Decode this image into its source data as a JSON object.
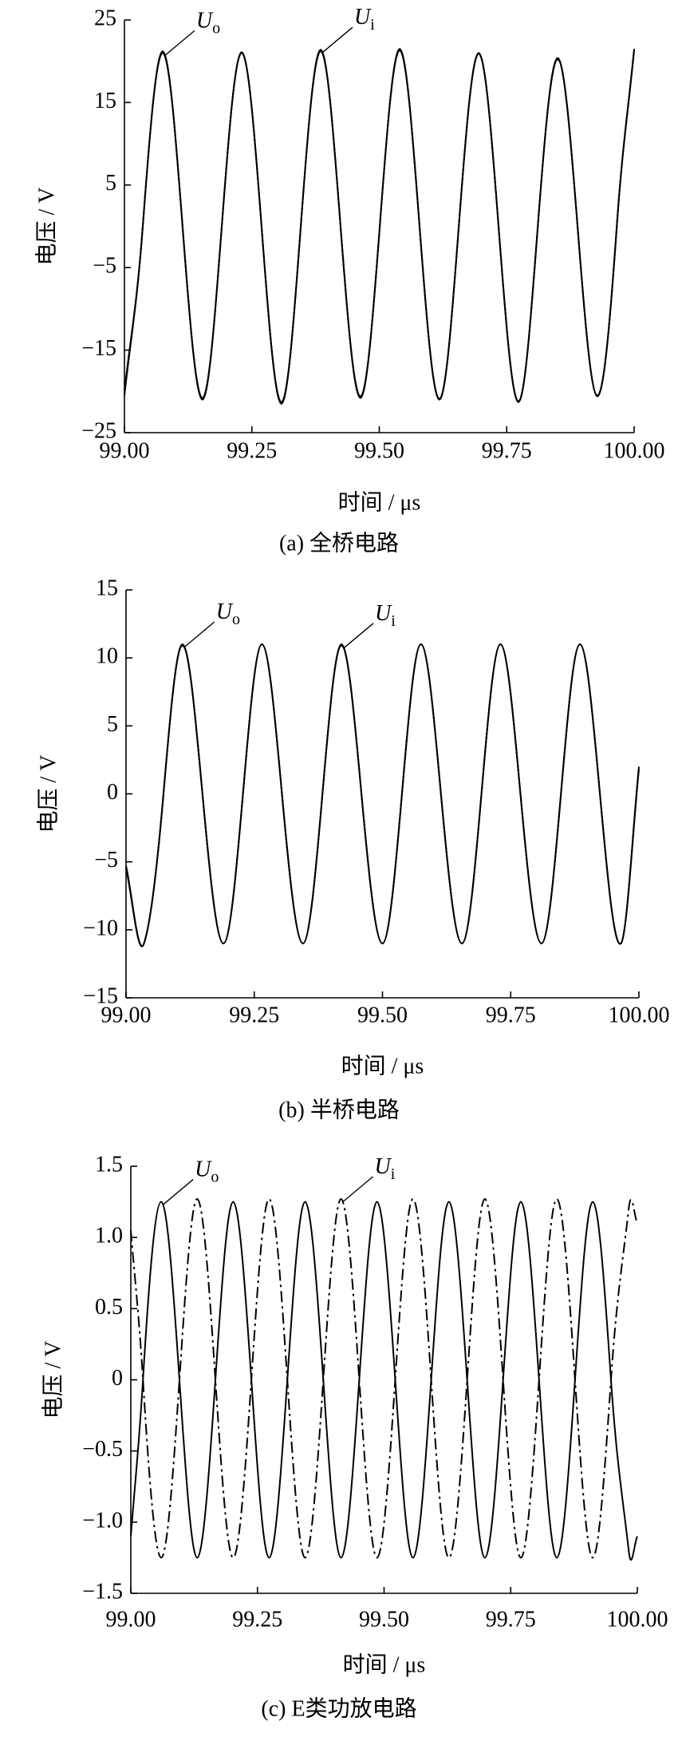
{
  "chart_data": [
    {
      "type": "line",
      "caption": "(a)  全桥电路",
      "xlabel": "时间 / μs",
      "ylabel": "电压 / V",
      "xlim": [
        99,
        100
      ],
      "ylim": [
        -25,
        25
      ],
      "xticks": [
        {
          "value": 99,
          "label": "99.00"
        },
        {
          "value": 99.25,
          "label": "99.25"
        },
        {
          "value": 99.5,
          "label": "99.50"
        },
        {
          "value": 99.75,
          "label": "99.75"
        },
        {
          "value": 100,
          "label": "100.00"
        }
      ],
      "yticks": [
        {
          "value": -25,
          "label": "−25"
        },
        {
          "value": -15,
          "label": "−15"
        },
        {
          "value": -5,
          "label": "−5"
        },
        5,
        15,
        25
      ],
      "series": [
        {
          "name": "Uo",
          "color": "#000000",
          "style": "solid",
          "x": [
            99,
            99.036,
            99.075,
            99.114,
            99.153,
            99.191,
            99.23,
            99.269,
            99.308,
            99.346,
            99.385,
            99.424,
            99.463,
            99.501,
            99.54,
            99.579,
            99.618,
            99.656,
            99.695,
            99.734,
            99.773,
            99.811,
            99.85,
            99.889,
            99.928,
            99.966,
            100
          ],
          "values": [
            -20.5,
            0,
            21,
            0,
            -21,
            0,
            21,
            0,
            -21.5,
            0,
            21.2,
            0,
            -20.8,
            0,
            21.3,
            0,
            -20.9,
            0,
            21,
            0,
            -21.2,
            0,
            20.4,
            0,
            -20.6,
            0,
            21.3
          ]
        },
        {
          "name": "Ui",
          "color": "#000000",
          "style": "solid",
          "x": [
            99,
            99.036,
            99.075,
            99.114,
            99.153,
            99.191,
            99.23,
            99.269,
            99.308,
            99.346,
            99.385,
            99.424,
            99.463,
            99.501,
            99.54,
            99.579,
            99.618,
            99.656,
            99.695,
            99.734,
            99.773,
            99.811,
            99.85,
            99.889,
            99.928,
            99.966,
            100
          ],
          "values": [
            -20,
            0,
            21.2,
            0,
            -20.8,
            0,
            21.1,
            0,
            -21.3,
            0,
            21.4,
            0,
            -20.6,
            0,
            21.5,
            0,
            -21,
            0,
            20.9,
            0,
            -21.3,
            0,
            20.2,
            0,
            -20.5,
            0,
            21.5
          ]
        }
      ]
    },
    {
      "type": "line",
      "caption": "(b)  半桥电路",
      "xlabel": "时间 / μs",
      "ylabel": "电压 / V",
      "xlim": [
        99,
        100
      ],
      "ylim": [
        -15,
        15
      ],
      "xticks": [
        {
          "value": 99,
          "label": "99.00"
        },
        {
          "value": 99.25,
          "label": "99.25"
        },
        {
          "value": 99.5,
          "label": "99.50"
        },
        {
          "value": 99.75,
          "label": "99.75"
        },
        {
          "value": 100,
          "label": "100.00"
        }
      ],
      "yticks": [
        {
          "value": -15,
          "label": "−15"
        },
        {
          "value": -10,
          "label": "−10"
        },
        {
          "value": -5,
          "label": "−5"
        },
        0,
        5,
        10,
        15
      ],
      "series": [
        {
          "name": "Uo",
          "color": "#000000",
          "style": "solid",
          "x": [
            99,
            99.035,
            99.073,
            99.11,
            99.149,
            99.19,
            99.228,
            99.265,
            99.304,
            99.345,
            99.383,
            99.42,
            99.459,
            99.5,
            99.538,
            99.575,
            99.614,
            99.655,
            99.693,
            99.73,
            99.769,
            99.81,
            99.848,
            99.885,
            99.924,
            99.965,
            100
          ],
          "values": [
            -5.5,
            -11,
            0,
            11,
            0,
            -11,
            0,
            11,
            0,
            -11,
            0,
            11,
            0,
            -11,
            0,
            11,
            0,
            -11,
            0,
            11,
            0,
            -11,
            0,
            11,
            0,
            -11,
            2
          ]
        },
        {
          "name": "Ui",
          "color": "#000000",
          "style": "solid",
          "x": [
            99,
            99.035,
            99.073,
            99.11,
            99.149,
            99.19,
            99.228,
            99.265,
            99.304,
            99.345,
            99.383,
            99.42,
            99.459,
            99.5,
            99.538,
            99.575,
            99.614,
            99.655,
            99.693,
            99.73,
            99.769,
            99.81,
            99.848,
            99.885,
            99.924,
            99.965,
            100
          ],
          "values": [
            -5.3,
            -11,
            0,
            10.9,
            0,
            -11,
            0,
            11,
            0,
            -11,
            0,
            10.9,
            0,
            -11,
            0,
            11,
            0,
            -11,
            0,
            11,
            0,
            -11,
            0,
            11,
            0,
            -11,
            1.8
          ]
        }
      ]
    },
    {
      "type": "line",
      "caption": "(c)  E类功放电路",
      "xlabel": "时间 / μs",
      "ylabel": "电压 / V",
      "xlim": [
        99,
        100
      ],
      "ylim": [
        -1.5,
        1.5
      ],
      "xticks": [
        {
          "value": 99,
          "label": "99.00"
        },
        {
          "value": 99.25,
          "label": "99.25"
        },
        {
          "value": 99.5,
          "label": "99.50"
        },
        {
          "value": 99.75,
          "label": "99.75"
        },
        {
          "value": 100,
          "label": "100.00"
        }
      ],
      "yticks": [
        {
          "value": -1.5,
          "label": "−1.5"
        },
        {
          "value": -1,
          "label": "−1.0"
        },
        {
          "value": -0.5,
          "label": "−0.5"
        },
        0,
        0.5,
        {
          "value": 1,
          "label": "1.0"
        },
        1.5
      ],
      "series": [
        {
          "name": "Uo",
          "color": "#000000",
          "style": "solid",
          "x": [
            99,
            99.024,
            99.06,
            99.096,
            99.131,
            99.167,
            99.202,
            99.238,
            99.273,
            99.309,
            99.344,
            99.38,
            99.415,
            99.451,
            99.486,
            99.522,
            99.557,
            99.593,
            99.628,
            99.664,
            99.699,
            99.735,
            99.77,
            99.806,
            99.841,
            99.877,
            99.912,
            99.948,
            99.983,
            100
          ],
          "values": [
            -1.1,
            0,
            1.25,
            0,
            -1.25,
            0,
            1.25,
            0,
            -1.25,
            0,
            1.25,
            0,
            -1.25,
            0,
            1.25,
            0,
            -1.25,
            0,
            1.25,
            0,
            -1.25,
            0,
            1.25,
            0,
            -1.25,
            0,
            1.25,
            0,
            -1.2,
            -1.1
          ]
        },
        {
          "name": "Ui",
          "color": "#000000",
          "style": "dash-dot",
          "x": [
            99,
            99.024,
            99.06,
            99.096,
            99.131,
            99.167,
            99.202,
            99.238,
            99.273,
            99.309,
            99.344,
            99.38,
            99.415,
            99.451,
            99.486,
            99.522,
            99.557,
            99.593,
            99.628,
            99.664,
            99.699,
            99.735,
            99.77,
            99.806,
            99.841,
            99.877,
            99.912,
            99.948,
            99.983,
            100
          ],
          "values": [
            1.05,
            0,
            -1.25,
            0,
            1.27,
            0,
            -1.25,
            0,
            1.27,
            0,
            -1.25,
            0,
            1.27,
            0,
            -1.25,
            0,
            1.27,
            0,
            -1.25,
            0,
            1.27,
            0,
            -1.25,
            0,
            1.27,
            0,
            -1.25,
            0,
            1.2,
            1.1
          ]
        }
      ]
    }
  ]
}
